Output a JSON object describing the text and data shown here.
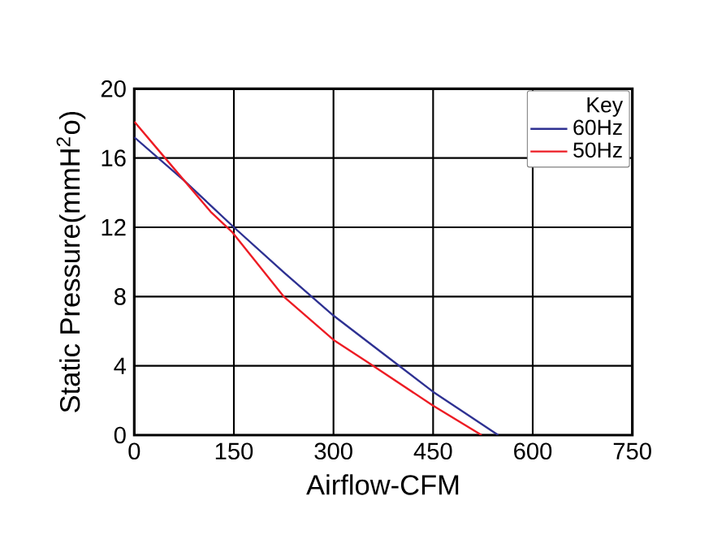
{
  "chart_data": {
    "type": "line",
    "xlabel": "Airflow-CFM",
    "ylabel": "Static Pressure(mmH$^{2}$o)",
    "legend_title": "Key",
    "series": [
      {
        "name": "60Hz",
        "color": "#2e3192",
        "x": [
          0,
          75,
          150,
          225,
          300,
          375,
          450,
          548
        ],
        "values": [
          17.2,
          14.7,
          12.0,
          9.4,
          6.9,
          4.7,
          2.5,
          0
        ]
      },
      {
        "name": "50Hz",
        "color": "#ed1c24",
        "x": [
          0,
          42,
          115,
          148,
          225,
          300,
          352,
          450,
          523
        ],
        "values": [
          18.1,
          16.2,
          12.9,
          11.7,
          8.0,
          5.5,
          4.2,
          1.7,
          0
        ]
      }
    ],
    "xlim": [
      0,
      750
    ],
    "ylim": [
      0,
      20
    ],
    "xticks": [
      0,
      150,
      300,
      450,
      600,
      750
    ],
    "yticks": [
      0,
      4,
      8,
      12,
      16,
      20
    ],
    "grid": true,
    "legend": "top right",
    "line_style": "solid",
    "marker": "none"
  }
}
